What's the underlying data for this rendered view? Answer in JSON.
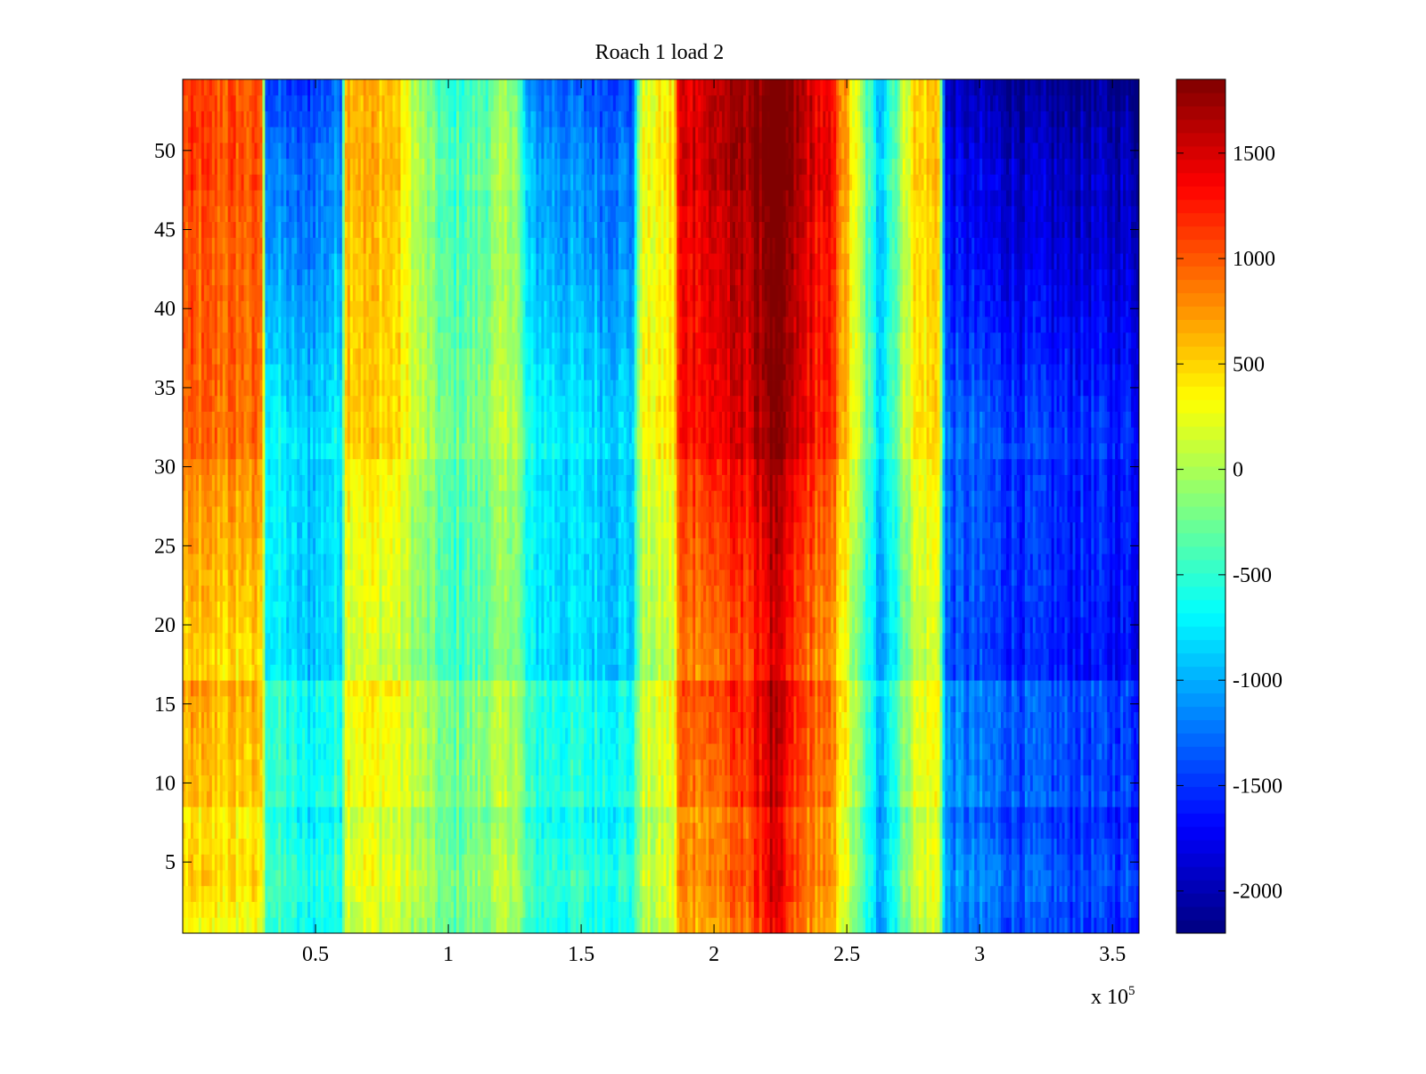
{
  "chart_data": {
    "type": "heatmap",
    "title": "Roach 1 load 2",
    "xlabel": "",
    "ylabel": "",
    "x_multiplier_label": "x 10",
    "x_multiplier_exponent": "5",
    "xlim": [
      0,
      360000
    ],
    "ylim": [
      0.5,
      54.5
    ],
    "x_ticks": [
      {
        "value": 50000,
        "label": "0.5"
      },
      {
        "value": 100000,
        "label": "1"
      },
      {
        "value": 150000,
        "label": "1.5"
      },
      {
        "value": 200000,
        "label": "2"
      },
      {
        "value": 250000,
        "label": "2.5"
      },
      {
        "value": 300000,
        "label": "3"
      },
      {
        "value": 350000,
        "label": "3.5"
      }
    ],
    "y_ticks": [
      {
        "value": 5,
        "label": "5"
      },
      {
        "value": 10,
        "label": "10"
      },
      {
        "value": 15,
        "label": "15"
      },
      {
        "value": 20,
        "label": "20"
      },
      {
        "value": 25,
        "label": "25"
      },
      {
        "value": 30,
        "label": "30"
      },
      {
        "value": 35,
        "label": "35"
      },
      {
        "value": 40,
        "label": "40"
      },
      {
        "value": 45,
        "label": "45"
      },
      {
        "value": 50,
        "label": "50"
      }
    ],
    "colormap": "jet",
    "color_range": [
      -2200,
      1850
    ],
    "colorbar_ticks": [
      {
        "value": 1500,
        "label": "1500"
      },
      {
        "value": 1000,
        "label": "1000"
      },
      {
        "value": 500,
        "label": "500"
      },
      {
        "value": 0,
        "label": "0"
      },
      {
        "value": -500,
        "label": "-500"
      },
      {
        "value": -1000,
        "label": "-1000"
      },
      {
        "value": -1500,
        "label": "-1500"
      },
      {
        "value": -2000,
        "label": "-2000"
      }
    ],
    "rows": 54,
    "column_profile": {
      "x": [
        0,
        30000,
        31000,
        45000,
        60000,
        61000,
        80000,
        90000,
        100000,
        110000,
        125000,
        130000,
        150000,
        170000,
        172000,
        185000,
        187000,
        200000,
        215000,
        222000,
        230000,
        245000,
        262000,
        268000,
        275000,
        285000,
        287000,
        320000,
        360000
      ],
      "base": [
        750,
        700,
        -600,
        -900,
        -700,
        400,
        300,
        -100,
        -400,
        -300,
        0,
        -700,
        -800,
        -850,
        100,
        250,
        1100,
        1150,
        1350,
        1700,
        1300,
        900,
        -900,
        -500,
        200,
        350,
        -1300,
        -1500,
        -1600
      ],
      "upper_delta": [
        250,
        250,
        -800,
        -700,
        -600,
        250,
        200,
        -100,
        -200,
        -200,
        -100,
        -500,
        -600,
        -600,
        0,
        100,
        300,
        400,
        350,
        300,
        350,
        300,
        -100,
        100,
        200,
        150,
        -700,
        -700,
        -600
      ],
      "lower_delta": [
        -350,
        -350,
        300,
        300,
        200,
        -150,
        -100,
        100,
        150,
        150,
        100,
        250,
        300,
        350,
        -100,
        -100,
        -300,
        -400,
        -300,
        -200,
        -300,
        -300,
        -100,
        -50,
        -100,
        -100,
        200,
        150,
        150
      ]
    },
    "row_modifiers": {
      "row": [
        1,
        4,
        8,
        9,
        10,
        15,
        16,
        17,
        30,
        31,
        45,
        47,
        48,
        54
      ],
      "delta": [
        -80,
        50,
        -100,
        60,
        30,
        50,
        100,
        -150,
        20,
        150,
        80,
        100,
        150,
        50
      ]
    },
    "noise_amplitude": 220,
    "grid": false,
    "colorbar": "right"
  }
}
